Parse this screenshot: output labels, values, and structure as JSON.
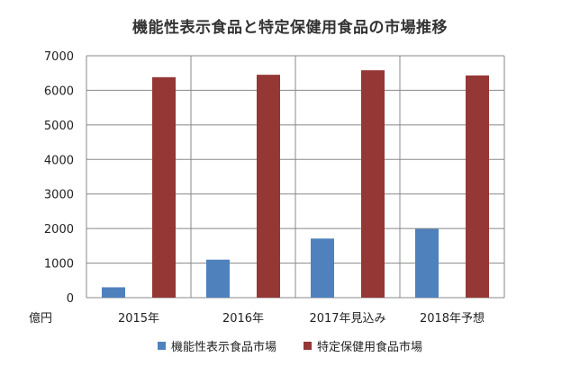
{
  "chart_data": {
    "type": "bar",
    "title": "機能性表示食品と特定保健用食品の市場推移",
    "ylabel": "億円",
    "xlabel": "",
    "ylim": [
      0,
      7000
    ],
    "yticks": [
      0,
      1000,
      2000,
      3000,
      4000,
      5000,
      6000,
      7000
    ],
    "categories": [
      "2015年",
      "2016年",
      "2017年見込み",
      "2018年予想"
    ],
    "grid": true,
    "legend_position": "bottom",
    "series": [
      {
        "name": "機能性表示食品市場",
        "color": "#4f81bd",
        "values": [
          300,
          1100,
          1710,
          1990
        ]
      },
      {
        "name": "特定保健用食品市場",
        "color": "#953735",
        "values": [
          6380,
          6450,
          6580,
          6430
        ]
      }
    ]
  }
}
